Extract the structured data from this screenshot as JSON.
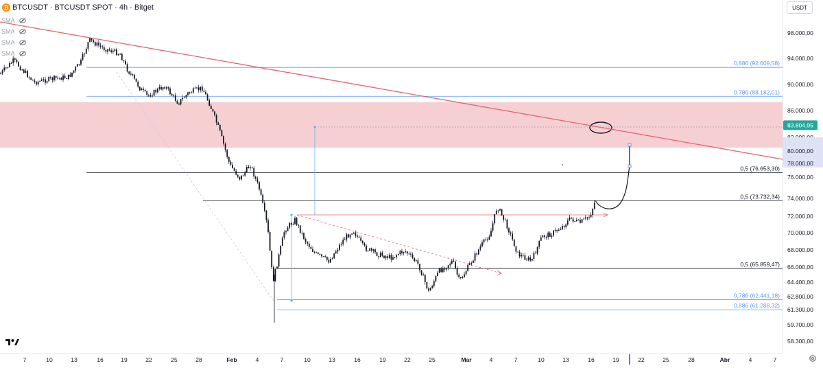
{
  "header": {
    "symbol": "BTCUSDT · BTCUSDT SPOT · 4h · Bitget",
    "coin_icon": "bitcoin-coin-icon"
  },
  "legend": {
    "items": [
      {
        "label": "SMA",
        "icon": "eye-slash-icon"
      },
      {
        "label": "SMA",
        "icon": "eye-slash-icon"
      },
      {
        "label": "SMA",
        "icon": "eye-slash-icon"
      },
      {
        "label": "SMA",
        "icon": "eye-slash-icon"
      }
    ]
  },
  "currency_button": "USDT",
  "price_axis": {
    "min": 58300,
    "max": 100000,
    "ticks": [
      "98.000,00",
      "94.000,00",
      "90.000,00",
      "86.000,00",
      "82.000,00",
      "80.000,00",
      "78.000,00",
      "76.000,00",
      "74.000,00",
      "72.000,00",
      "70.000,00",
      "68.000,00",
      "66.000,00",
      "64.400,00",
      "62.800,00",
      "61.300,00",
      "59.700,00",
      "58.300,00"
    ],
    "tick_values": [
      98000,
      94000,
      90000,
      86000,
      82000,
      80000,
      78000,
      76000,
      74000,
      72000,
      70000,
      68000,
      66000,
      64400,
      62800,
      61300,
      59700,
      58300
    ],
    "current_price": "83.804,95",
    "current_price_value": 83804.95,
    "current_price_color": "#26a69a"
  },
  "time_axis": {
    "labels": [
      "7",
      "10",
      "13",
      "16",
      "19",
      "22",
      "25",
      "28",
      "Feb",
      "4",
      "7",
      "10",
      "13",
      "16",
      "19",
      "22",
      "25",
      "Mar",
      "4",
      "7",
      "10",
      "13",
      "16",
      "19",
      "22",
      "25",
      "28",
      "Abr",
      "4",
      "7"
    ],
    "bold": [
      "Feb",
      "Mar",
      "Abr"
    ]
  },
  "fib_levels": [
    {
      "label": "0,886 (92.609,58)",
      "price": 92609.58,
      "color": "#5b9cf4"
    },
    {
      "label": "0,786 (88.182,01)",
      "price": 88182.01,
      "color": "#5b9cf4"
    },
    {
      "label": "0,5 (76.653,30)",
      "price": 76653.3,
      "color": "#131722"
    },
    {
      "label": "0,5 (73.732,34)",
      "price": 73732.34,
      "color": "#131722"
    },
    {
      "label": "0,5 (65.859,47)",
      "price": 65859.47,
      "color": "#131722"
    },
    {
      "label": "0,786 (62.441,18)",
      "price": 62441.18,
      "color": "#5b9cf4"
    },
    {
      "label": "0,886 (61.288,32)",
      "price": 61288.32,
      "color": "#5b9cf4"
    }
  ],
  "zone": {
    "top_price": 87300,
    "bottom_price": 80500,
    "color": "#f4c7cb"
  },
  "colors": {
    "trendline": "#e06572",
    "measure": "#5bb5e8",
    "candle": "#131722",
    "projection": "#131722"
  },
  "icons": {
    "logo": "tradingview-logo-icon",
    "settings": "gear-icon"
  }
}
